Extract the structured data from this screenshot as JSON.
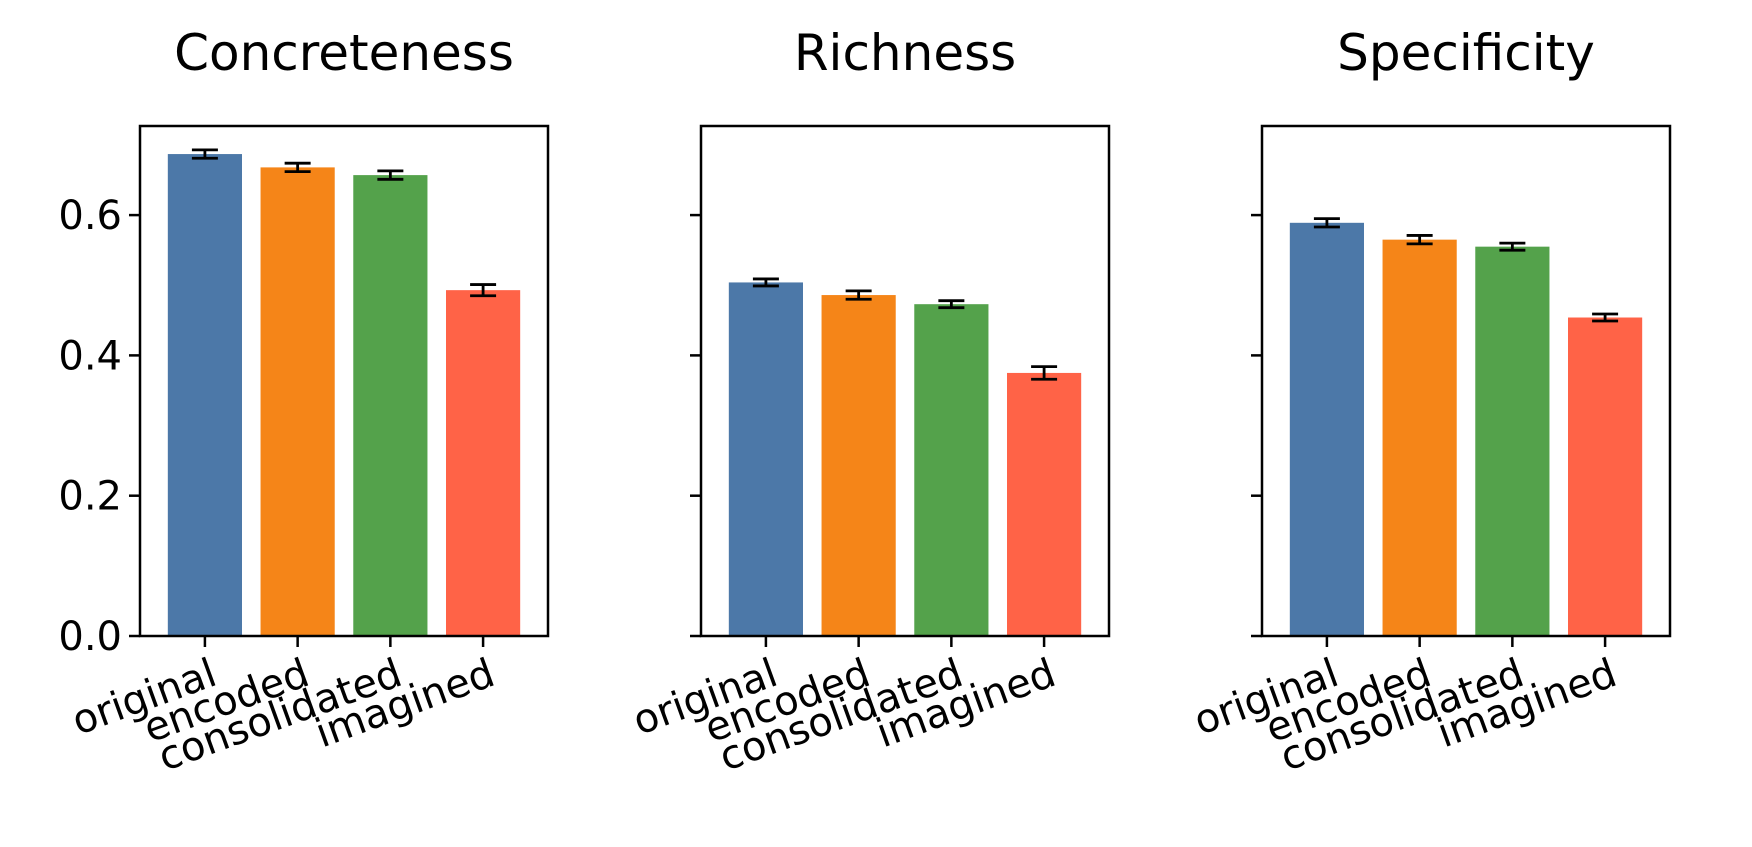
{
  "chart_data": [
    {
      "type": "bar",
      "title": "Concreteness",
      "categories": [
        "original",
        "encoded",
        "consolidated",
        "imagined"
      ],
      "values": [
        0.687,
        0.668,
        0.657,
        0.493
      ],
      "errors": [
        0.006,
        0.006,
        0.006,
        0.008
      ],
      "ylim": [
        0,
        0.727
      ],
      "yticks": [
        "0.0",
        "0.2",
        "0.4",
        "0.6"
      ],
      "ytick_values": [
        0,
        0.2,
        0.4,
        0.6
      ]
    },
    {
      "type": "bar",
      "title": "Richness",
      "categories": [
        "original",
        "encoded",
        "consolidated",
        "imagined"
      ],
      "values": [
        0.504,
        0.486,
        0.473,
        0.375
      ],
      "errors": [
        0.005,
        0.006,
        0.005,
        0.009
      ],
      "ylim": [
        0,
        0.727
      ],
      "ytick_values": [
        0,
        0.2,
        0.4,
        0.6
      ]
    },
    {
      "type": "bar",
      "title": "Specificity",
      "categories": [
        "original",
        "encoded",
        "consolidated",
        "imagined"
      ],
      "values": [
        0.589,
        0.565,
        0.555,
        0.454
      ],
      "errors": [
        0.006,
        0.006,
        0.005,
        0.005
      ],
      "ylim": [
        0,
        0.727
      ],
      "ytick_values": [
        0,
        0.2,
        0.4,
        0.6
      ]
    }
  ],
  "colors": {
    "original": "#4c78a8",
    "encoded": "#f58518",
    "consolidated": "#54a24b",
    "imagined": "#ff6347"
  }
}
